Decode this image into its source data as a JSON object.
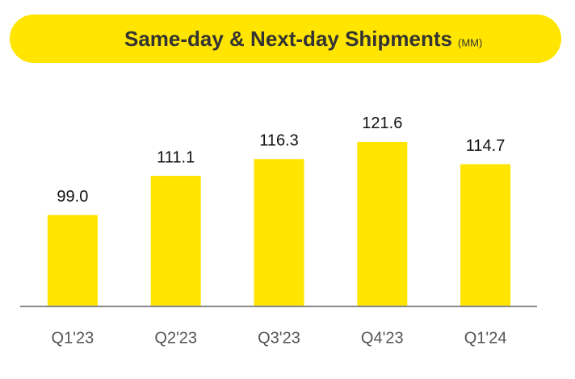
{
  "chart_data": {
    "type": "bar",
    "title": "Same-day & Next-day Shipments",
    "unit": "(MM)",
    "categories": [
      "Q1'23",
      "Q2'23",
      "Q3'23",
      "Q4'23",
      "Q1'24"
    ],
    "values": [
      99.0,
      111.1,
      116.3,
      121.6,
      114.7
    ],
    "value_labels": [
      "99.0",
      "111.1",
      "116.3",
      "121.6",
      "114.7"
    ],
    "color": "#ffe500",
    "ylim": [
      71,
      150
    ]
  }
}
